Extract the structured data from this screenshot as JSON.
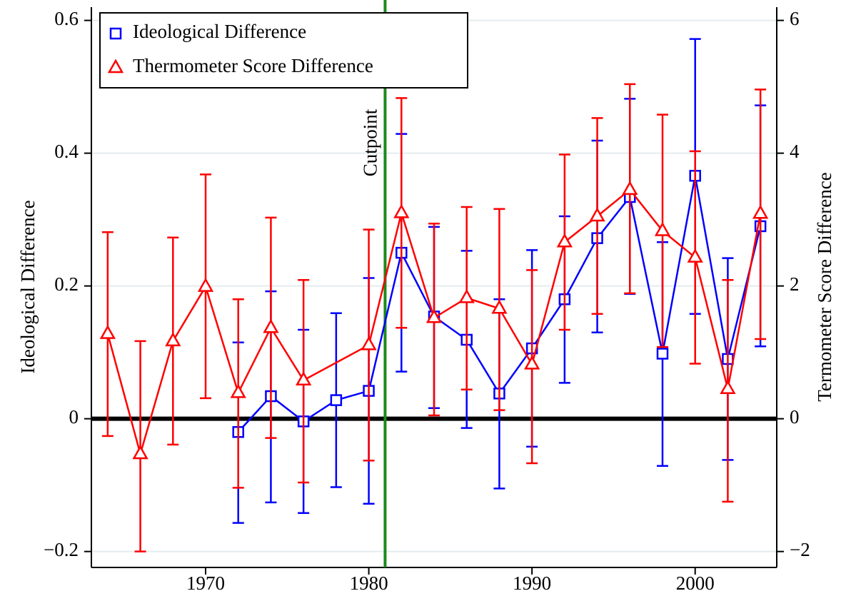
{
  "chart_data": {
    "type": "errorbar-line",
    "ylabel": "Ideological Difference",
    "y2label": "Termometer Score Difference",
    "xlim": [
      1963,
      2005
    ],
    "xticks": [
      1970,
      1980,
      1990,
      2000
    ],
    "ylim": [
      -0.224,
      0.62
    ],
    "yticks": [
      0.6,
      0.4,
      0.2,
      0,
      {
        "value": -0.2,
        "label": "−0.2"
      }
    ],
    "y2lim": [
      -2.24,
      6.2
    ],
    "y2ticks": [
      6,
      4,
      2,
      0,
      {
        "value": -2,
        "label": "−2"
      }
    ],
    "grid": true,
    "hline": 0,
    "vline": {
      "x": 1981,
      "label": "Cutpoint",
      "color": "#1a8a1a"
    },
    "legend": "upper left",
    "series": [
      {
        "name": "Ideological Difference",
        "color": "#0000ff",
        "marker": "square",
        "axis": "y",
        "x": [
          1972,
          1974,
          1976,
          1978,
          1980,
          1982,
          1984,
          1986,
          1988,
          1990,
          1992,
          1994,
          1996,
          1998,
          2000,
          2002,
          2004
        ],
        "values": [
          -0.02,
          0.034,
          -0.004,
          0.028,
          0.042,
          0.25,
          0.154,
          0.119,
          0.038,
          0.106,
          0.18,
          0.272,
          0.334,
          0.098,
          0.366,
          0.09,
          0.29
        ],
        "lower": [
          -0.157,
          -0.126,
          -0.142,
          -0.103,
          -0.128,
          0.071,
          0.016,
          -0.014,
          -0.105,
          -0.042,
          0.054,
          0.13,
          0.188,
          -0.071,
          0.158,
          -0.062,
          0.109
        ],
        "upper": [
          0.115,
          0.192,
          0.134,
          0.159,
          0.212,
          0.429,
          0.289,
          0.253,
          0.18,
          0.254,
          0.305,
          0.419,
          0.482,
          0.266,
          0.572,
          0.242,
          0.472
        ]
      },
      {
        "name": "Thermometer Score Difference",
        "color": "#ff0000",
        "marker": "triangle",
        "axis": "y2",
        "x": [
          1964,
          1966,
          1968,
          1970,
          1972,
          1974,
          1976,
          1980,
          1982,
          1984,
          1986,
          1988,
          1990,
          1992,
          1994,
          1996,
          1998,
          2000,
          2002,
          2004
        ],
        "values": [
          1.28,
          -0.53,
          1.17,
          1.99,
          0.39,
          1.37,
          0.58,
          1.11,
          3.1,
          1.52,
          1.82,
          1.66,
          0.82,
          2.66,
          3.05,
          3.45,
          2.83,
          2.43,
          0.45,
          3.09
        ],
        "lower": [
          -0.26,
          -2.0,
          -0.39,
          0.31,
          -1.04,
          -0.29,
          -0.96,
          -0.63,
          1.37,
          0.05,
          0.44,
          0.13,
          -0.67,
          1.34,
          1.58,
          1.89,
          1.08,
          0.83,
          -1.25,
          1.2
        ],
        "upper": [
          2.81,
          1.17,
          2.73,
          3.68,
          1.8,
          3.03,
          2.09,
          2.85,
          4.83,
          2.94,
          3.19,
          3.16,
          2.24,
          3.98,
          4.53,
          5.04,
          4.58,
          4.03,
          2.09,
          4.96
        ]
      }
    ]
  }
}
